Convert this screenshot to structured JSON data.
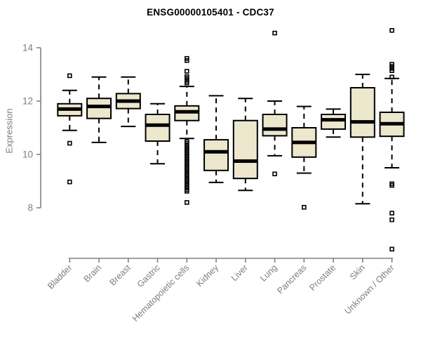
{
  "chart_data": {
    "type": "boxplot",
    "title": "ENSG00000105401 - CDC37",
    "ylabel": "Expression",
    "yticks": [
      8,
      10,
      12,
      14
    ],
    "ylim": [
      6.2,
      14.8
    ],
    "grid": false,
    "legend": "none",
    "box_fill": "#ECE7CD",
    "box_stroke": "#000000",
    "axis_color": "#808080",
    "label_color": "#7D7D7D",
    "categories": [
      "Bladder",
      "Brain",
      "Breast",
      "Gastric",
      "Hematopoietic cells",
      "Kidney",
      "Liver",
      "Lung",
      "Pancreas",
      "Prostate",
      "Skin",
      "Unknown / Other"
    ],
    "series": [
      {
        "category": "Bladder",
        "whisker_low": 10.9,
        "q1": 11.45,
        "median": 11.7,
        "q3": 11.9,
        "whisker_high": 12.4,
        "outliers": [
          12.95,
          10.42,
          8.97
        ]
      },
      {
        "category": "Brain",
        "whisker_low": 10.45,
        "q1": 11.35,
        "median": 11.8,
        "q3": 12.1,
        "whisker_high": 12.9,
        "outliers": []
      },
      {
        "category": "Breast",
        "whisker_low": 11.05,
        "q1": 11.72,
        "median": 12.0,
        "q3": 12.28,
        "whisker_high": 12.9,
        "outliers": []
      },
      {
        "category": "Gastric",
        "whisker_low": 9.65,
        "q1": 10.5,
        "median": 11.1,
        "q3": 11.5,
        "whisker_high": 11.9,
        "outliers": []
      },
      {
        "category": "Hematopoietic cells",
        "whisker_low": 10.6,
        "q1": 11.27,
        "median": 11.6,
        "q3": 11.82,
        "whisker_high": 12.55,
        "outliers": [
          13.6,
          13.52,
          13.12,
          12.92,
          12.86,
          12.8,
          12.74,
          12.68,
          10.48,
          10.42,
          10.36,
          10.3,
          10.24,
          10.18,
          10.12,
          10.06,
          10.0,
          9.94,
          9.88,
          9.82,
          9.76,
          9.7,
          9.64,
          9.58,
          9.52,
          9.46,
          9.4,
          9.34,
          9.28,
          9.22,
          9.16,
          9.1,
          9.04,
          8.98,
          8.92,
          8.86,
          8.8,
          8.74,
          8.68,
          8.62,
          8.2
        ]
      },
      {
        "category": "Kidney",
        "whisker_low": 8.95,
        "q1": 9.4,
        "median": 10.1,
        "q3": 10.55,
        "whisker_high": 12.2,
        "outliers": []
      },
      {
        "category": "Liver",
        "whisker_low": 8.65,
        "q1": 9.1,
        "median": 9.75,
        "q3": 11.27,
        "whisker_high": 12.1,
        "outliers": []
      },
      {
        "category": "Lung",
        "whisker_low": 9.95,
        "q1": 10.7,
        "median": 10.95,
        "q3": 11.5,
        "whisker_high": 12.0,
        "outliers": [
          14.55,
          9.27
        ]
      },
      {
        "category": "Pancreas",
        "whisker_low": 9.3,
        "q1": 9.9,
        "median": 10.45,
        "q3": 11.0,
        "whisker_high": 11.8,
        "outliers": [
          8.02
        ]
      },
      {
        "category": "Prostate",
        "whisker_low": 10.65,
        "q1": 10.95,
        "median": 11.3,
        "q3": 11.5,
        "whisker_high": 11.7,
        "outliers": []
      },
      {
        "category": "Skin",
        "whisker_low": 8.15,
        "q1": 10.65,
        "median": 11.22,
        "q3": 12.5,
        "whisker_high": 13.0,
        "outliers": []
      },
      {
        "category": "Unknown / Other",
        "whisker_low": 9.5,
        "q1": 10.68,
        "median": 11.15,
        "q3": 11.58,
        "whisker_high": 12.85,
        "outliers": [
          14.65,
          13.38,
          13.3,
          13.22,
          13.14,
          12.9,
          8.9,
          8.84,
          7.8,
          7.55,
          6.45
        ]
      }
    ]
  }
}
